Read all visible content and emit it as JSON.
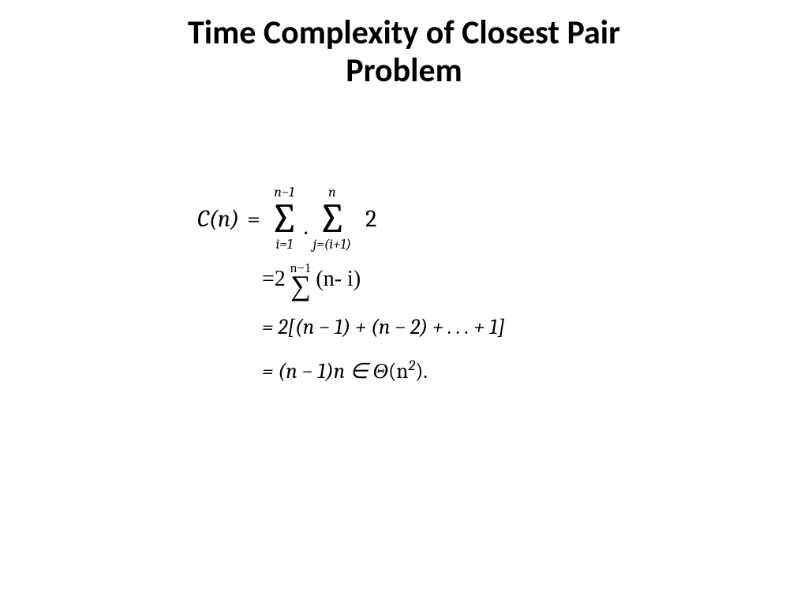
{
  "title_line1": "Time Complexity of Closest Pair",
  "title_line2": "Problem",
  "eq": {
    "lhs": "C(n)",
    "equals": "=",
    "sum1_upper": "n−1",
    "sum1_lower": "i=1",
    "sum2_upper": "n",
    "sum2_lower": "j=(i+1)",
    "body1": "2",
    "line2_prefix": "=2",
    "line2_sum_upper": "n−1",
    "line2_body": "(n- i)",
    "line3": "=  2[(n − 1) + (n − 2) + . . . + 1]",
    "line4_a": "= (n − 1)n ∈ Θ",
    "line4_b": "(n",
    "line4_sup": "2",
    "line4_c": ")."
  },
  "colors": {
    "text": "#000000",
    "background": "#ffffff"
  },
  "fonts": {
    "title_size": 42,
    "math_size": 30
  }
}
